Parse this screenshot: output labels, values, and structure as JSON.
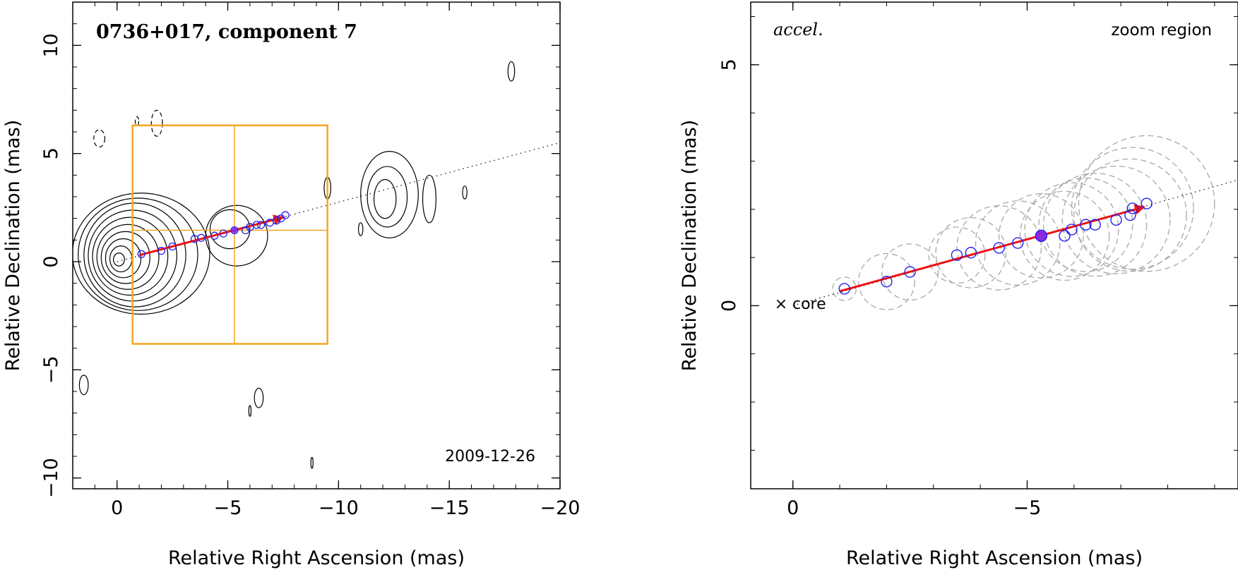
{
  "chart_data": [
    {
      "type": "scatter",
      "panel": "left",
      "title": "0736+017, component 7",
      "date": "2009-12-26",
      "xlabel": "Relative Right Ascension (mas)",
      "ylabel": "Relative Declination (mas)",
      "xlim": [
        2,
        -20
      ],
      "ylim": [
        -10.5,
        12
      ],
      "x_ticks": [
        0,
        -5,
        -10,
        -15,
        -20
      ],
      "x_tick_labels": [
        "0",
        "−5",
        "−10",
        "−15",
        "−20"
      ],
      "y_ticks": [
        -10,
        -5,
        0,
        5,
        10
      ],
      "y_tick_labels": [
        "−10",
        "−5",
        "0",
        "5",
        "10"
      ],
      "positions": {
        "x": [
          -1.1,
          -2.0,
          -2.5,
          -3.5,
          -3.8,
          -4.4,
          -4.8,
          -5.3,
          -5.8,
          -6.0,
          -6.3,
          -6.5,
          -6.9,
          -7.2,
          -7.4,
          -7.6
        ],
        "y": [
          0.35,
          0.5,
          0.7,
          1.05,
          1.1,
          1.2,
          1.3,
          1.45,
          1.45,
          1.6,
          1.7,
          1.7,
          1.8,
          1.9,
          2.0,
          2.15
        ]
      },
      "highlight_epoch": {
        "x": -5.3,
        "y": 1.45
      },
      "motion_vector": {
        "x0": -1.0,
        "y0": 0.3,
        "x1": -7.5,
        "y1": 2.05
      },
      "trend_line": {
        "x0": 0,
        "y0": 0,
        "x1": -20,
        "y1": 5.5
      },
      "zoom_box": {
        "x": [
          -0.7,
          -9.5
        ],
        "y": [
          -3.8,
          6.3
        ]
      },
      "crosshair": {
        "x": -5.3,
        "y": 1.45
      },
      "contours": {
        "core": {
          "cx": 0,
          "cy": 0.1,
          "levels": [
            [
              0.25,
              0.3
            ],
            [
              0.5,
              0.6
            ],
            [
              0.8,
              0.9
            ],
            [
              1.1,
              1.2
            ],
            [
              1.4,
              1.5
            ],
            [
              1.7,
              1.8
            ],
            [
              2.0,
              2.1
            ],
            [
              2.3,
              2.4
            ],
            [
              2.7,
              2.6
            ],
            [
              3.1,
              2.8
            ]
          ]
        },
        "blobs": [
          {
            "cx": -5.1,
            "cy": 1.5,
            "rx": 0.9,
            "ry": 0.9
          },
          {
            "cx": -5.4,
            "cy": 1.2,
            "rx": 1.4,
            "ry": 1.4
          },
          {
            "cx": -12.1,
            "cy": 2.9,
            "rx": 0.5,
            "ry": 0.9
          },
          {
            "cx": -12.2,
            "cy": 3.0,
            "rx": 0.9,
            "ry": 1.4
          },
          {
            "cx": -12.3,
            "cy": 3.1,
            "rx": 1.3,
            "ry": 2.0
          },
          {
            "cx": -14.1,
            "cy": 2.9,
            "rx": 0.3,
            "ry": 1.1
          },
          {
            "cx": -9.5,
            "cy": 3.4,
            "rx": 0.15,
            "ry": 0.5
          },
          {
            "cx": -11.0,
            "cy": 1.5,
            "rx": 0.1,
            "ry": 0.3
          },
          {
            "cx": -15.7,
            "cy": 3.2,
            "rx": 0.1,
            "ry": 0.3
          },
          {
            "cx": -17.8,
            "cy": 8.8,
            "rx": 0.15,
            "ry": 0.45
          },
          {
            "cx": -6.4,
            "cy": -6.3,
            "rx": 0.2,
            "ry": 0.45
          },
          {
            "cx": -6.0,
            "cy": -6.9,
            "rx": 0.05,
            "ry": 0.25
          },
          {
            "cx": -8.8,
            "cy": -9.3,
            "rx": 0.05,
            "ry": 0.25
          },
          {
            "cx": 1.5,
            "cy": -5.7,
            "rx": 0.2,
            "ry": 0.45
          },
          {
            "cx": 0.8,
            "cy": 5.7,
            "rx": 0.25,
            "ry": 0.4,
            "dashed": true
          },
          {
            "cx": -1.8,
            "cy": 6.4,
            "rx": 0.25,
            "ry": 0.6,
            "dashed": true
          },
          {
            "cx": -0.9,
            "cy": 6.5,
            "rx": 0.08,
            "ry": 0.2,
            "dashed": true
          }
        ]
      }
    },
    {
      "type": "scatter",
      "panel": "right",
      "label": "accel.",
      "region_label": "zoom region",
      "core_label": "core",
      "core_marker": "×",
      "xlabel": "Relative Right Ascension (mas)",
      "ylabel": "Relative Declination (mas)",
      "xlim": [
        0.9,
        -9.5
      ],
      "ylim": [
        -3.8,
        6.3
      ],
      "x_ticks": [
        0,
        -5
      ],
      "x_tick_labels": [
        "0",
        "−5"
      ],
      "y_ticks": [
        0,
        5
      ],
      "y_tick_labels": [
        "0",
        "5"
      ],
      "positions": {
        "x": [
          -1.1,
          -2.0,
          -2.5,
          -3.5,
          -3.8,
          -4.4,
          -4.8,
          -5.3,
          -5.8,
          -5.95,
          -6.25,
          -6.45,
          -6.9,
          -7.2,
          -7.25,
          -7.55
        ],
        "y": [
          0.35,
          0.5,
          0.7,
          1.05,
          1.1,
          1.2,
          1.3,
          1.45,
          1.45,
          1.58,
          1.68,
          1.68,
          1.78,
          1.88,
          2.02,
          2.12
        ]
      },
      "uncertainty_radii": [
        0.25,
        0.6,
        0.6,
        0.6,
        0.75,
        0.9,
        0.9,
        0.9,
        0.95,
        1.0,
        1.0,
        1.1,
        1.15,
        1.2,
        1.3,
        1.45
      ],
      "highlight_epoch": {
        "x": -5.3,
        "y": 1.45
      },
      "motion_vector": {
        "x0": -1.0,
        "y0": 0.3,
        "x1": -7.5,
        "y1": 2.05
      },
      "trend_line": {
        "x0": 0,
        "y0": 0,
        "x1": -9.5,
        "y1": 2.61
      }
    }
  ]
}
